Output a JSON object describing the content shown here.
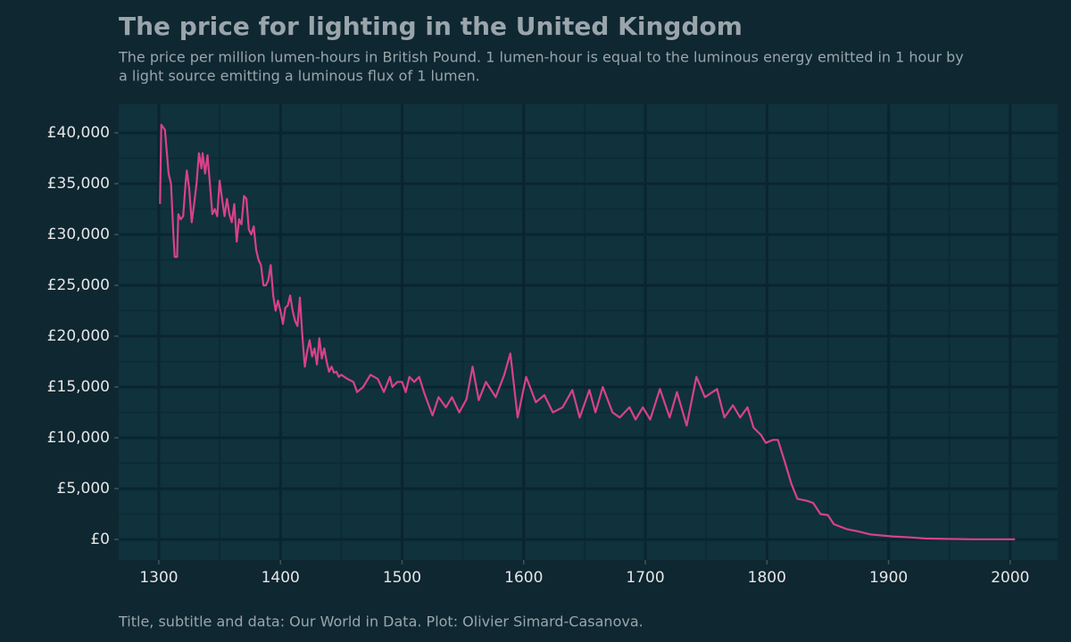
{
  "chart_data": {
    "type": "line",
    "title": "The price for lighting in the United Kingdom",
    "subtitle": [
      "The price per million lumen-hours in British Pound. 1 lumen-hour is equal to the luminous energy emitted in 1 hour by",
      "a light source emitting a luminous flux of 1 lumen."
    ],
    "caption": "Title, subtitle and data: Our World in Data. Plot: Olivier Simard-Casanova.",
    "x": [
      1301,
      1302,
      1305,
      1308,
      1310,
      1312,
      1313,
      1315,
      1316,
      1318,
      1320,
      1322,
      1323,
      1325,
      1327,
      1329,
      1331,
      1333,
      1335,
      1336,
      1338,
      1340,
      1342,
      1344,
      1346,
      1348,
      1350,
      1352,
      1354,
      1356,
      1358,
      1360,
      1362,
      1364,
      1366,
      1368,
      1370,
      1372,
      1374,
      1376,
      1378,
      1380,
      1382,
      1384,
      1386,
      1388,
      1390,
      1392,
      1394,
      1396,
      1398,
      1400,
      1402,
      1404,
      1406,
      1408,
      1410,
      1412,
      1414,
      1416,
      1418,
      1420,
      1422,
      1424,
      1426,
      1428,
      1430,
      1432,
      1434,
      1436,
      1438,
      1440,
      1442,
      1444,
      1446,
      1448,
      1450,
      1455,
      1460,
      1463,
      1468,
      1474,
      1480,
      1485,
      1490,
      1492,
      1496,
      1500,
      1503,
      1506,
      1510,
      1514,
      1518,
      1525,
      1530,
      1536,
      1541,
      1547,
      1553,
      1558,
      1563,
      1569,
      1577,
      1584,
      1589,
      1595,
      1602,
      1610,
      1617,
      1624,
      1632,
      1640,
      1646,
      1654,
      1659,
      1665,
      1673,
      1679,
      1687,
      1692,
      1698,
      1704,
      1712,
      1720,
      1726,
      1734,
      1742,
      1749,
      1759,
      1765,
      1772,
      1778,
      1784,
      1789,
      1795,
      1799,
      1805,
      1809,
      1815,
      1820,
      1825,
      1833,
      1838,
      1844,
      1850,
      1855,
      1866,
      1875,
      1885,
      1903,
      1918,
      1930,
      1947,
      1970,
      2004
    ],
    "series": [
      {
        "name": "Price",
        "color": "#d8418c",
        "values": [
          33000,
          40800,
          40300,
          36000,
          35000,
          30000,
          27800,
          27800,
          32000,
          31500,
          31800,
          35000,
          36300,
          34500,
          31200,
          33000,
          35000,
          38000,
          36500,
          38000,
          36000,
          37800,
          35000,
          32000,
          32500,
          31800,
          35300,
          33500,
          31800,
          33500,
          32000,
          31200,
          33000,
          29300,
          31500,
          31000,
          33800,
          33500,
          30500,
          30000,
          30800,
          28500,
          27500,
          27000,
          25000,
          25000,
          25500,
          27000,
          24000,
          22500,
          23500,
          22500,
          21200,
          22800,
          23000,
          24000,
          22500,
          21500,
          21000,
          23800,
          20000,
          17000,
          18500,
          19600,
          18000,
          18800,
          17200,
          19800,
          17800,
          18800,
          17500,
          16500,
          17000,
          16400,
          16500,
          16000,
          16200,
          15800,
          15500,
          14500,
          15000,
          16200,
          15800,
          14500,
          16000,
          15000,
          15500,
          15500,
          14500,
          16000,
          15500,
          16000,
          14500,
          12200,
          14000,
          13000,
          14000,
          12500,
          13800,
          17000,
          13700,
          15500,
          14000,
          16200,
          18300,
          12000,
          16000,
          13500,
          14200,
          12500,
          13000,
          14700,
          12000,
          14700,
          12500,
          15000,
          12500,
          12000,
          13000,
          11800,
          13000,
          11800,
          14800,
          12000,
          14500,
          11200,
          16000,
          14000,
          14800,
          12000,
          13200,
          12000,
          13000,
          11000,
          10300,
          9500,
          9800,
          9800,
          7500,
          5500,
          4000,
          3800,
          3600,
          2500,
          2400,
          1500,
          1000,
          800,
          500,
          300,
          200,
          100,
          50,
          20,
          20
        ]
      }
    ],
    "xlim": [
      1267,
      2039
    ],
    "ylim": [
      -2018,
      42807
    ],
    "xticks": [
      1300,
      1400,
      1500,
      1600,
      1700,
      1800,
      1900,
      2000
    ],
    "yticks": [
      {
        "value": 0,
        "label": "£0"
      },
      {
        "value": 5000,
        "label": "£5,000"
      },
      {
        "value": 10000,
        "label": "£10,000"
      },
      {
        "value": 15000,
        "label": "£15,000"
      },
      {
        "value": 20000,
        "label": "£20,000"
      },
      {
        "value": 25000,
        "label": "£25,000"
      },
      {
        "value": 30000,
        "label": "£30,000"
      },
      {
        "value": 35000,
        "label": "£35,000"
      },
      {
        "value": 40000,
        "label": "£40,000"
      }
    ],
    "grid": true,
    "minor_grid": true
  }
}
